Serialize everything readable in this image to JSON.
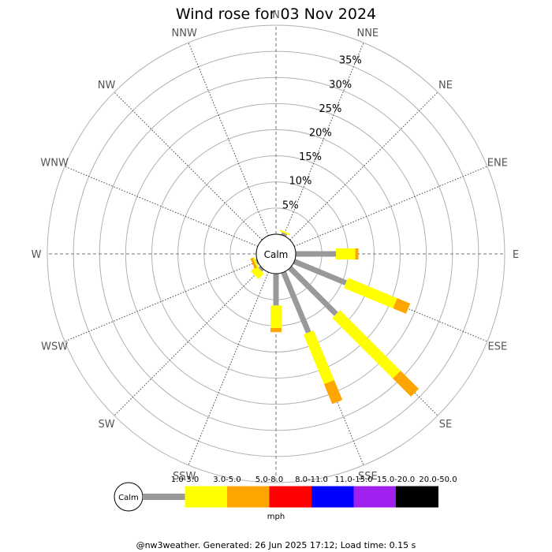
{
  "chart_data": {
    "type": "windrose",
    "title": "Wind rose for 03 Nov 2024",
    "calm_label": "Calm",
    "directions": [
      "N",
      "NNE",
      "NE",
      "ENE",
      "E",
      "ESE",
      "SE",
      "SSE",
      "S",
      "SSW",
      "SW",
      "WSW",
      "W",
      "WNW",
      "NW",
      "NNW"
    ],
    "radial_ticks": [
      5,
      10,
      15,
      20,
      25,
      30,
      35
    ],
    "radial_tick_labels": [
      "5%",
      "10%",
      "15%",
      "20%",
      "25%",
      "30%",
      "35%"
    ],
    "rmax": 40,
    "units": "mph",
    "speed_bins": [
      {
        "label": "1.0-3.0",
        "color": "#999999"
      },
      {
        "label": "3.0-5.0",
        "color": "#ffff00"
      },
      {
        "label": "5.0-8.0",
        "color": "#ffa500"
      },
      {
        "label": "8.0-11.0",
        "color": "#ff0000"
      },
      {
        "label": "11.0-15.0",
        "color": "#0000ff"
      },
      {
        "label": "15.0-20.0",
        "color": "#a020f0"
      },
      {
        "label": "20.0-50.0",
        "color": "#000000"
      }
    ],
    "series": [
      {
        "direction": "NNE",
        "values": [
          0.5,
          0.3,
          0,
          0,
          0,
          0,
          0
        ]
      },
      {
        "direction": "E",
        "values": [
          7.7,
          3.7,
          0.6,
          0,
          0,
          0,
          0
        ]
      },
      {
        "direction": "ESE",
        "values": [
          10.7,
          10.2,
          2.7,
          0,
          0,
          0,
          0
        ]
      },
      {
        "direction": "SE",
        "values": [
          12.5,
          16.4,
          4.9,
          0,
          0,
          0,
          0
        ]
      },
      {
        "direction": "SSE",
        "values": [
          12.5,
          10.3,
          4.1,
          0,
          0,
          0,
          0
        ]
      },
      {
        "direction": "S",
        "values": [
          6.1,
          4.3,
          0.8,
          0,
          0,
          0,
          0
        ]
      },
      {
        "direction": "SSW",
        "values": [
          0,
          0,
          0,
          0,
          0,
          0,
          0
        ]
      },
      {
        "direction": "SW",
        "values": [
          0.5,
          1.5,
          0,
          0,
          0,
          0,
          0
        ]
      },
      {
        "direction": "WSW",
        "values": [
          0.3,
          0.3,
          0.5,
          0,
          0,
          0,
          0
        ]
      }
    ]
  },
  "footer": "@nw3weather. Generated: 26 Jun 2025 17:12; Load time: 0.15 s"
}
